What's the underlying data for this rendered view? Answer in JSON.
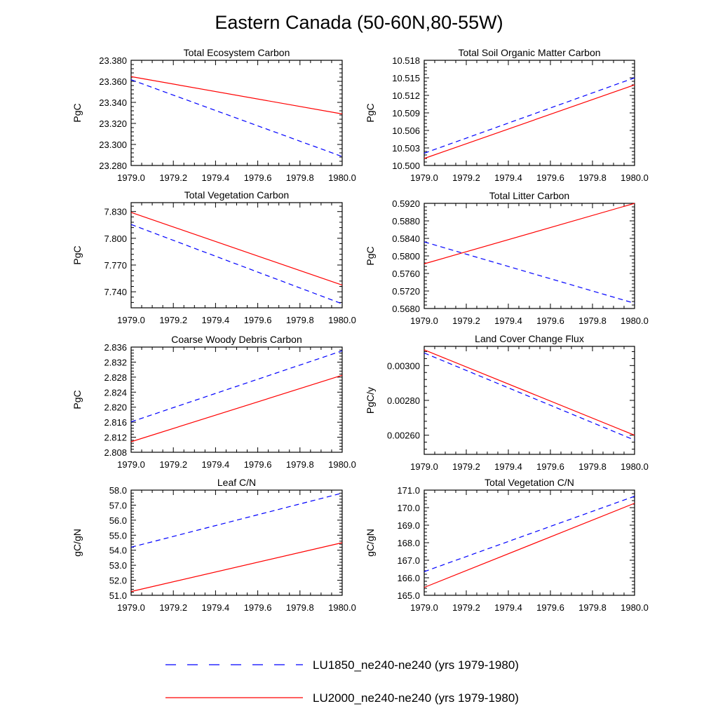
{
  "figure": {
    "title": "Eastern Canada (50-60N,80-55W)",
    "legend": [
      {
        "label": "LU1850_ne240-ne240 (yrs 1979-1980)",
        "color": "#0000ff",
        "dash": "dashed"
      },
      {
        "label": "LU2000_ne240-ne240 (yrs 1979-1980)",
        "color": "#ff0000",
        "dash": "solid"
      }
    ]
  },
  "chart_data": [
    {
      "type": "line",
      "title": "Total Ecosystem Carbon",
      "ylabel": "PgC",
      "xlim": [
        1979.0,
        1980.0
      ],
      "ylim": [
        23.28,
        23.38
      ],
      "xticks": [
        "1979.0",
        "1979.2",
        "1979.4",
        "1979.6",
        "1979.8",
        "1980.0"
      ],
      "yticks": [
        "23.280",
        "23.300",
        "23.320",
        "23.340",
        "23.360",
        "23.380"
      ],
      "series": [
        {
          "name": "LU1850_ne240-ne240 (yrs 1979-1980)",
          "x": [
            1979.0,
            1980.0
          ],
          "y": [
            23.3615,
            23.2885
          ]
        },
        {
          "name": "LU2000_ne240-ne240 (yrs 1979-1980)",
          "x": [
            1979.0,
            1980.0
          ],
          "y": [
            23.3645,
            23.329
          ]
        }
      ]
    },
    {
      "type": "line",
      "title": "Total Soil Organic Matter Carbon",
      "ylabel": "PgC",
      "xlim": [
        1979.0,
        1980.0
      ],
      "ylim": [
        10.5,
        10.518
      ],
      "xticks": [
        "1979.0",
        "1979.2",
        "1979.4",
        "1979.6",
        "1979.8",
        "1980.0"
      ],
      "yticks": [
        "10.500",
        "10.503",
        "10.506",
        "10.509",
        "10.512",
        "10.515",
        "10.518"
      ],
      "series": [
        {
          "name": "LU1850_ne240-ne240 (yrs 1979-1980)",
          "x": [
            1979.0,
            1980.0
          ],
          "y": [
            10.5021,
            10.515
          ]
        },
        {
          "name": "LU2000_ne240-ne240 (yrs 1979-1980)",
          "x": [
            1979.0,
            1980.0
          ],
          "y": [
            10.5012,
            10.5138
          ]
        }
      ]
    },
    {
      "type": "line",
      "title": "Total Vegetation Carbon",
      "ylabel": "PgC",
      "xlim": [
        1979.0,
        1980.0
      ],
      "ylim": [
        7.722,
        7.84
      ],
      "xticks": [
        "1979.0",
        "1979.2",
        "1979.4",
        "1979.6",
        "1979.8",
        "1980.0"
      ],
      "yticks": [
        "7.740",
        "7.770",
        "7.800",
        "7.830"
      ],
      "series": [
        {
          "name": "LU1850_ne240-ne240 (yrs 1979-1980)",
          "x": [
            1979.0,
            1980.0
          ],
          "y": [
            7.8155,
            7.7265
          ]
        },
        {
          "name": "LU2000_ne240-ne240 (yrs 1979-1980)",
          "x": [
            1979.0,
            1980.0
          ],
          "y": [
            7.829,
            7.7475
          ]
        }
      ]
    },
    {
      "type": "line",
      "title": "Total Litter Carbon",
      "ylabel": "PgC",
      "xlim": [
        1979.0,
        1980.0
      ],
      "ylim": [
        0.568,
        0.592
      ],
      "xticks": [
        "1979.0",
        "1979.2",
        "1979.4",
        "1979.6",
        "1979.8",
        "1980.0"
      ],
      "yticks": [
        "0.5680",
        "0.5720",
        "0.5760",
        "0.5800",
        "0.5840",
        "0.5880",
        "0.5920"
      ],
      "series": [
        {
          "name": "LU1850_ne240-ne240 (yrs 1979-1980)",
          "x": [
            1979.0,
            1980.0
          ],
          "y": [
            0.5832,
            0.5692
          ]
        },
        {
          "name": "LU2000_ne240-ne240 (yrs 1979-1980)",
          "x": [
            1979.0,
            1980.0
          ],
          "y": [
            0.5782,
            0.592
          ]
        }
      ]
    },
    {
      "type": "line",
      "title": "Coarse Woody Debris Carbon",
      "ylabel": "PgC",
      "xlim": [
        1979.0,
        1980.0
      ],
      "ylim": [
        2.808,
        2.836
      ],
      "xticks": [
        "1979.0",
        "1979.2",
        "1979.4",
        "1979.6",
        "1979.8",
        "1980.0"
      ],
      "yticks": [
        "2.808",
        "2.812",
        "2.816",
        "2.820",
        "2.824",
        "2.828",
        "2.832",
        "2.836"
      ],
      "series": [
        {
          "name": "LU1850_ne240-ne240 (yrs 1979-1980)",
          "x": [
            1979.0,
            1980.0
          ],
          "y": [
            2.8161,
            2.835
          ]
        },
        {
          "name": "LU2000_ne240-ne240 (yrs 1979-1980)",
          "x": [
            1979.0,
            1980.0
          ],
          "y": [
            2.8108,
            2.8285
          ]
        }
      ]
    },
    {
      "type": "line",
      "title": "Land Cover Change Flux",
      "ylabel": "PgC/y",
      "xlim": [
        1979.0,
        1980.0
      ],
      "ylim": [
        0.00249,
        0.00311
      ],
      "xticks": [
        "1979.0",
        "1979.2",
        "1979.4",
        "1979.6",
        "1979.8",
        "1980.0"
      ],
      "yticks": [
        "0.00260",
        "0.00280",
        "0.00300"
      ],
      "series": [
        {
          "name": "LU1850_ne240-ne240 (yrs 1979-1980)",
          "x": [
            1979.0,
            1980.0
          ],
          "y": [
            0.003072,
            0.002572
          ]
        },
        {
          "name": "LU2000_ne240-ne240 (yrs 1979-1980)",
          "x": [
            1979.0,
            1980.0
          ],
          "y": [
            0.00309,
            0.0026
          ]
        }
      ]
    },
    {
      "type": "line",
      "title": "Leaf C/N",
      "ylabel": "gC/gN",
      "xlim": [
        1979.0,
        1980.0
      ],
      "ylim": [
        51.0,
        58.0
      ],
      "xticks": [
        "1979.0",
        "1979.2",
        "1979.4",
        "1979.6",
        "1979.8",
        "1980.0"
      ],
      "yticks": [
        "51.0",
        "52.0",
        "53.0",
        "54.0",
        "55.0",
        "56.0",
        "57.0",
        "58.0"
      ],
      "series": [
        {
          "name": "LU1850_ne240-ne240 (yrs 1979-1980)",
          "x": [
            1979.0,
            1980.0
          ],
          "y": [
            54.2,
            57.8
          ]
        },
        {
          "name": "LU2000_ne240-ne240 (yrs 1979-1980)",
          "x": [
            1979.0,
            1980.0
          ],
          "y": [
            51.25,
            54.5
          ]
        }
      ]
    },
    {
      "type": "line",
      "title": "Total Vegetation C/N",
      "ylabel": "gC/gN",
      "xlim": [
        1979.0,
        1980.0
      ],
      "ylim": [
        165.0,
        171.0
      ],
      "xticks": [
        "1979.0",
        "1979.2",
        "1979.4",
        "1979.6",
        "1979.8",
        "1980.0"
      ],
      "yticks": [
        "165.0",
        "166.0",
        "167.0",
        "168.0",
        "169.0",
        "170.0",
        "171.0"
      ],
      "series": [
        {
          "name": "LU1850_ne240-ne240 (yrs 1979-1980)",
          "x": [
            1979.0,
            1980.0
          ],
          "y": [
            166.35,
            170.65
          ]
        },
        {
          "name": "LU2000_ne240-ne240 (yrs 1979-1980)",
          "x": [
            1979.0,
            1980.0
          ],
          "y": [
            165.45,
            170.25
          ]
        }
      ]
    }
  ]
}
